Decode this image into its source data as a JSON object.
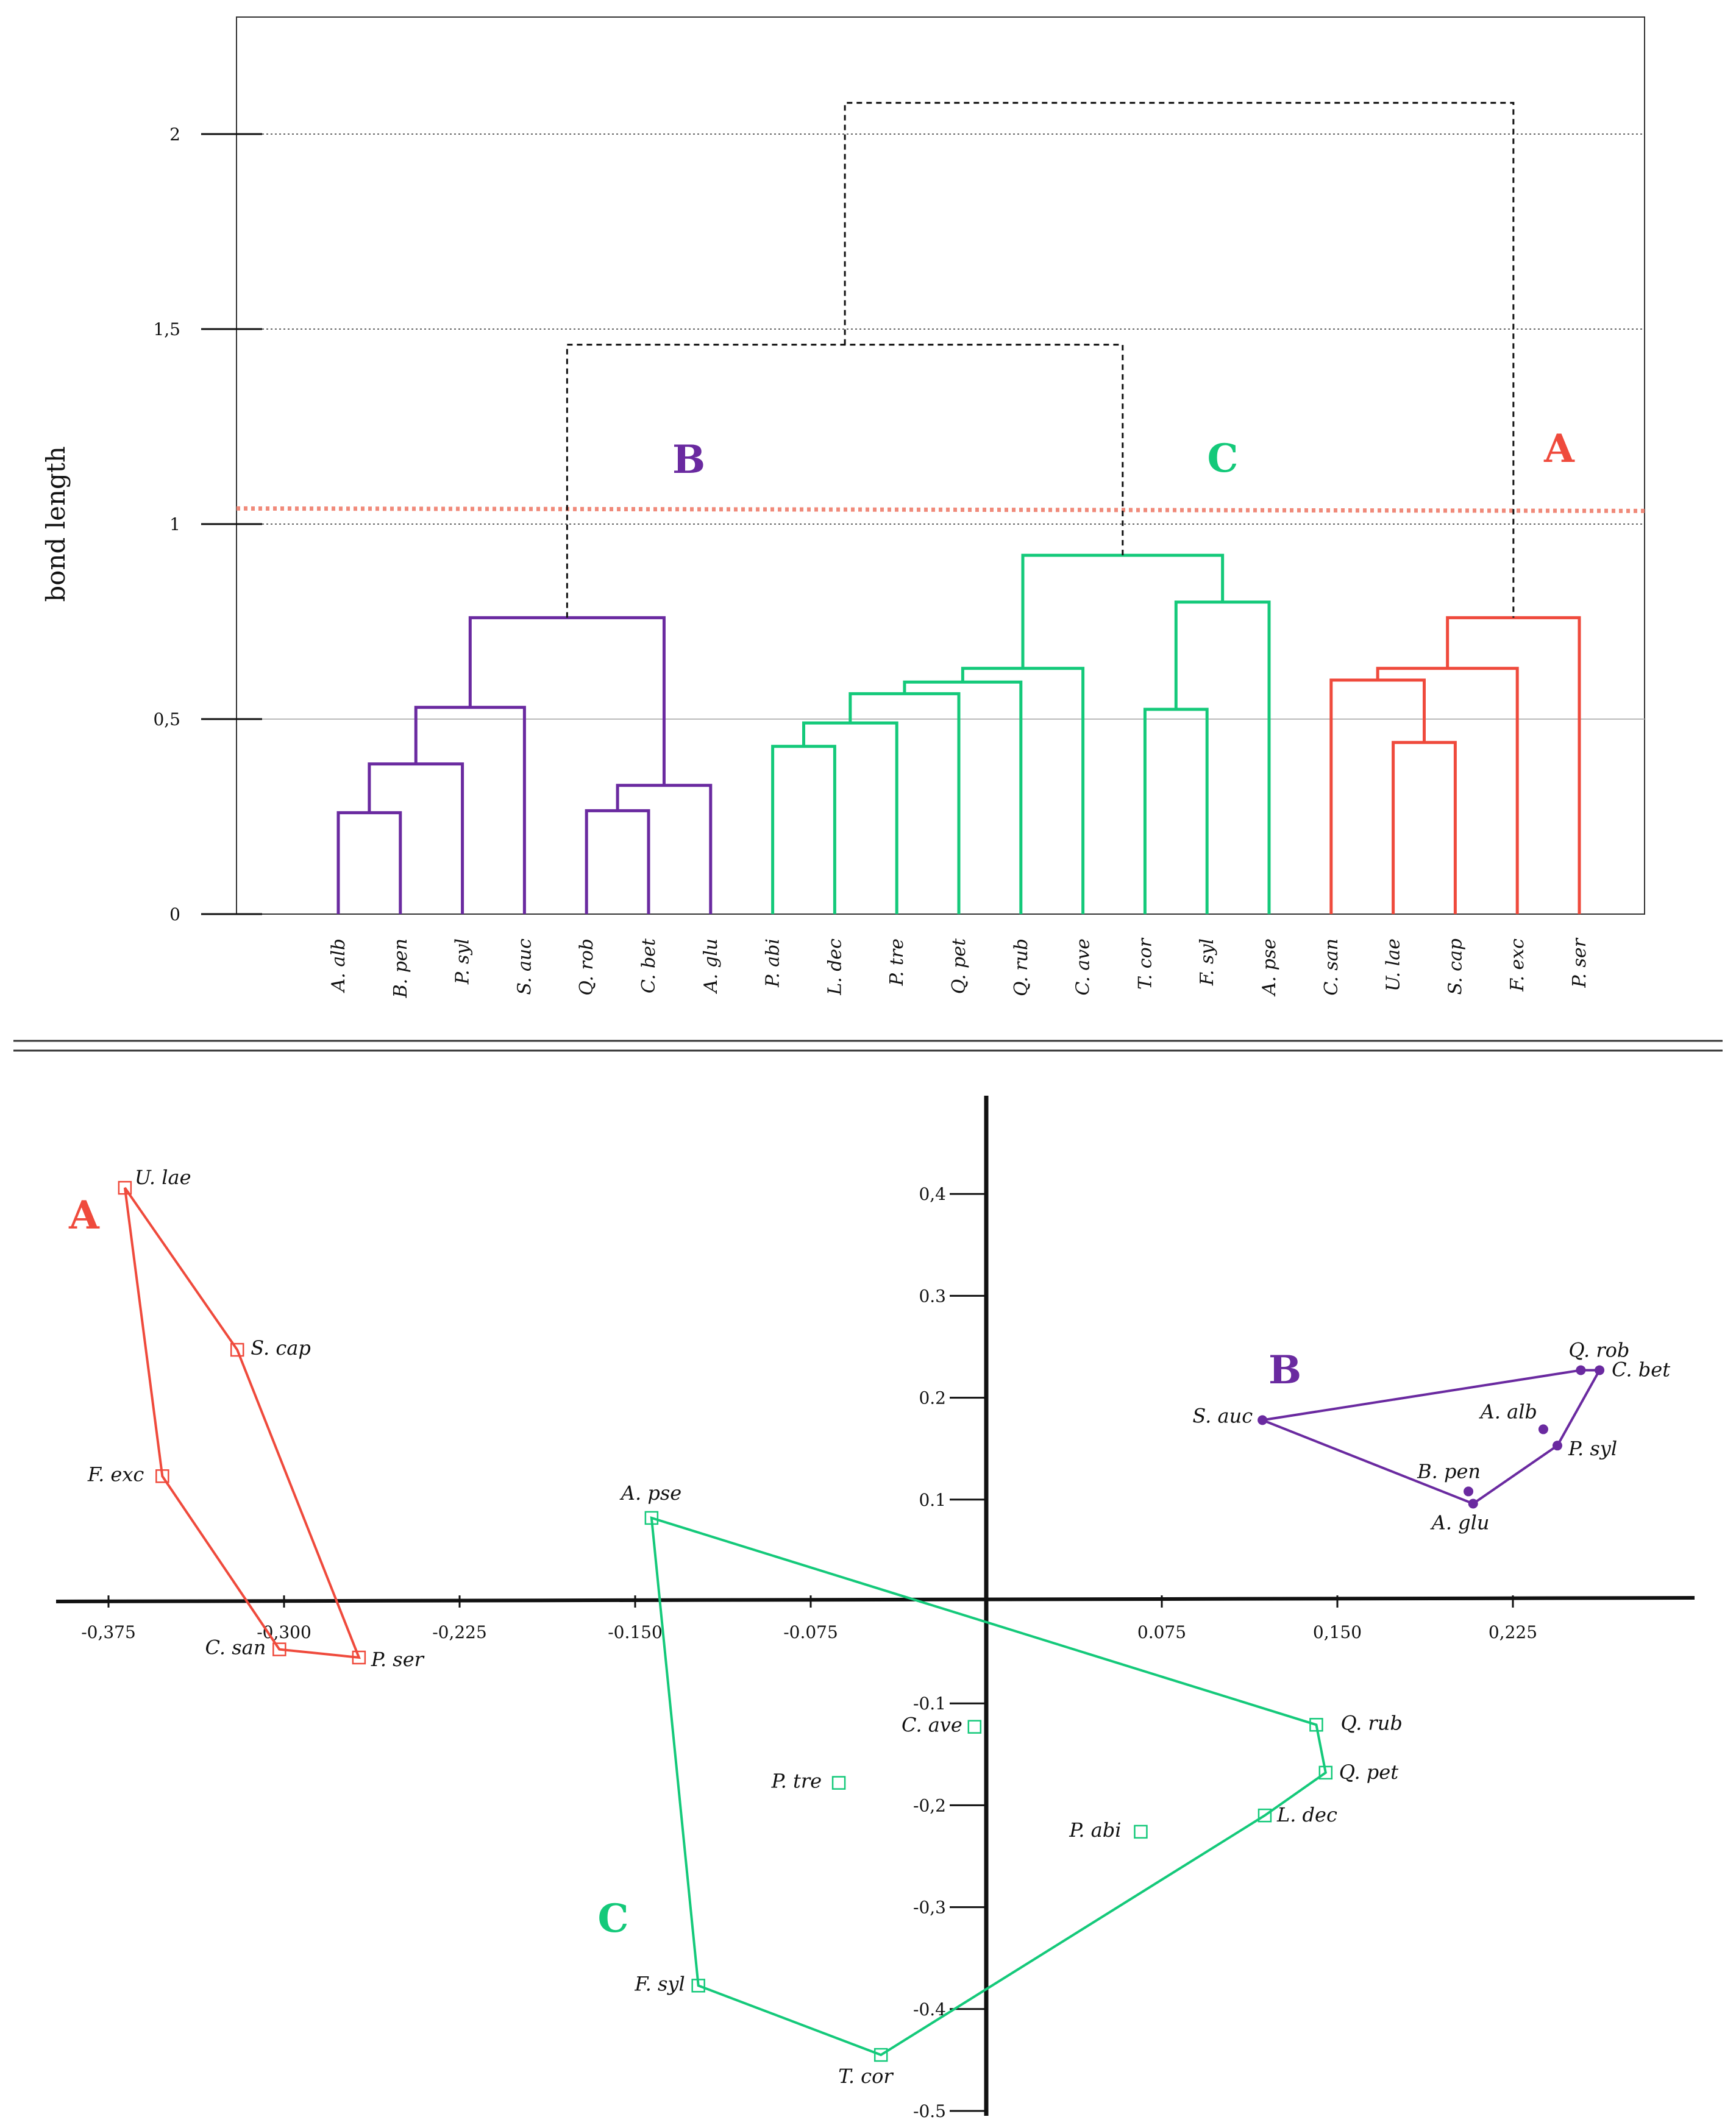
{
  "colors": {
    "A": "#ef4a3c",
    "B": "#6a2aa0",
    "C": "#14c97a",
    "link": "#111111"
  },
  "dendrogram": {
    "ylabel": "bond length",
    "yticks": [
      {
        "value": 0,
        "label": "0"
      },
      {
        "value": 0.5,
        "label": "0,5"
      },
      {
        "value": 1,
        "label": "1"
      },
      {
        "value": 1.5,
        "label": "1,5"
      },
      {
        "value": 2,
        "label": "2"
      }
    ],
    "cut_height": 1.04,
    "leaves": [
      "A. alb",
      "B. pen",
      "P. syl",
      "S. auc",
      "Q. rob",
      "C. bet",
      "A. glu",
      "P. abi",
      "L. dec",
      "P. tre",
      "Q. pet",
      "Q. rub",
      "C. ave",
      "T. cor",
      "F. syl",
      "A. pse",
      "C. san",
      "U. lae",
      "S. cap",
      "F. exc",
      "P. ser"
    ],
    "merges": [
      {
        "a": 0,
        "b": 1,
        "h": 0.26,
        "group": "B"
      },
      {
        "a": "m0",
        "b": 2,
        "h": 0.385,
        "group": "B"
      },
      {
        "a": "m1",
        "b": 3,
        "h": 0.53,
        "group": "B"
      },
      {
        "a": 4,
        "b": 5,
        "h": 0.265,
        "group": "B"
      },
      {
        "a": "m3",
        "b": 6,
        "h": 0.33,
        "group": "B"
      },
      {
        "a": "m2",
        "b": "m4",
        "h": 0.76,
        "group": "B"
      },
      {
        "a": 7,
        "b": 8,
        "h": 0.43,
        "group": "C"
      },
      {
        "a": "m6",
        "b": 9,
        "h": 0.49,
        "group": "C"
      },
      {
        "a": "m7",
        "b": 10,
        "h": 0.565,
        "group": "C"
      },
      {
        "a": "m8",
        "b": 11,
        "h": 0.595,
        "group": "C"
      },
      {
        "a": "m9",
        "b": 12,
        "h": 0.63,
        "group": "C"
      },
      {
        "a": 13,
        "b": 14,
        "h": 0.525,
        "group": "C"
      },
      {
        "a": "m11",
        "b": 15,
        "h": 0.8,
        "group": "C"
      },
      {
        "a": "m10",
        "b": "m12",
        "h": 0.92,
        "group": "C"
      },
      {
        "a": 17,
        "b": 18,
        "h": 0.44,
        "group": "A"
      },
      {
        "a": 16,
        "b": "m14",
        "h": 0.6,
        "group": "A"
      },
      {
        "a": "m15",
        "b": 19,
        "h": 0.63,
        "group": "A"
      },
      {
        "a": "m16",
        "b": 20,
        "h": 0.76,
        "group": "A"
      },
      {
        "a": "m5",
        "b": "m13",
        "h": 1.46,
        "group": "link"
      },
      {
        "a": "m18",
        "b": "m17",
        "h": 2.08,
        "group": "link"
      }
    ],
    "group_labels": [
      {
        "text": "B",
        "group": "B"
      },
      {
        "text": "C",
        "group": "C"
      },
      {
        "text": "A",
        "group": "A"
      }
    ]
  },
  "chart_data": {
    "type": "scatter",
    "xticks": [
      {
        "value": -0.375,
        "label": "-0,375"
      },
      {
        "value": -0.3,
        "label": "-0,300"
      },
      {
        "value": -0.225,
        "label": "-0,225"
      },
      {
        "value": -0.15,
        "label": "-0.150"
      },
      {
        "value": -0.075,
        "label": "-0.075"
      },
      {
        "value": 0.075,
        "label": "0.075"
      },
      {
        "value": 0.15,
        "label": "0,150"
      },
      {
        "value": 0.225,
        "label": "0,225"
      }
    ],
    "yticks": [
      {
        "value": 0.4,
        "label": "0,4"
      },
      {
        "value": 0.3,
        "label": "0.3"
      },
      {
        "value": 0.2,
        "label": "0.2"
      },
      {
        "value": 0.1,
        "label": "0.1"
      },
      {
        "value": -0.1,
        "label": "-0.1"
      },
      {
        "value": -0.2,
        "label": "-0,2"
      },
      {
        "value": -0.3,
        "label": "-0,3"
      },
      {
        "value": -0.4,
        "label": "-0.4"
      },
      {
        "value": -0.5,
        "label": "-0.5"
      }
    ],
    "series": [
      {
        "group": "A",
        "label": "A",
        "marker": "square",
        "hull": [
          "U. lae",
          "S. cap",
          "P. ser",
          "C. san",
          "F. exc"
        ],
        "points": [
          {
            "name": "U. lae",
            "x": -0.368,
            "y": 0.406
          },
          {
            "name": "S. cap",
            "x": -0.32,
            "y": 0.247
          },
          {
            "name": "F. exc",
            "x": -0.352,
            "y": 0.123
          },
          {
            "name": "C. san",
            "x": -0.302,
            "y": -0.047
          },
          {
            "name": "P. ser",
            "x": -0.268,
            "y": -0.055
          }
        ]
      },
      {
        "group": "B",
        "label": "B",
        "marker": "dot",
        "hull": [
          "S. auc",
          "Q. rob",
          "C. bet",
          "P. syl",
          "A. glu"
        ],
        "points": [
          {
            "name": "S. auc",
            "x": 0.118,
            "y": 0.178
          },
          {
            "name": "Q. rob",
            "x": 0.254,
            "y": 0.227
          },
          {
            "name": "C. bet",
            "x": 0.262,
            "y": 0.227
          },
          {
            "name": "A. alb",
            "x": 0.238,
            "y": 0.169
          },
          {
            "name": "P. syl",
            "x": 0.244,
            "y": 0.153
          },
          {
            "name": "B. pen",
            "x": 0.206,
            "y": 0.108
          },
          {
            "name": "A. glu",
            "x": 0.208,
            "y": 0.096
          }
        ]
      },
      {
        "group": "C",
        "label": "C",
        "marker": "square",
        "hull": [
          "A. pse",
          "Q. rub",
          "Q. pet",
          "L. dec",
          "T. cor",
          "F. syl"
        ],
        "points": [
          {
            "name": "A. pse",
            "x": -0.143,
            "y": 0.082
          },
          {
            "name": "C. ave",
            "x": -0.005,
            "y": -0.123
          },
          {
            "name": "P. tre",
            "x": -0.063,
            "y": -0.178
          },
          {
            "name": "Q. rub",
            "x": 0.141,
            "y": -0.121
          },
          {
            "name": "Q. pet",
            "x": 0.145,
            "y": -0.168
          },
          {
            "name": "L. dec",
            "x": 0.119,
            "y": -0.21
          },
          {
            "name": "P. abi",
            "x": 0.066,
            "y": -0.226
          },
          {
            "name": "F. syl",
            "x": -0.123,
            "y": -0.377
          },
          {
            "name": "T. cor",
            "x": -0.045,
            "y": -0.445
          }
        ]
      }
    ]
  }
}
